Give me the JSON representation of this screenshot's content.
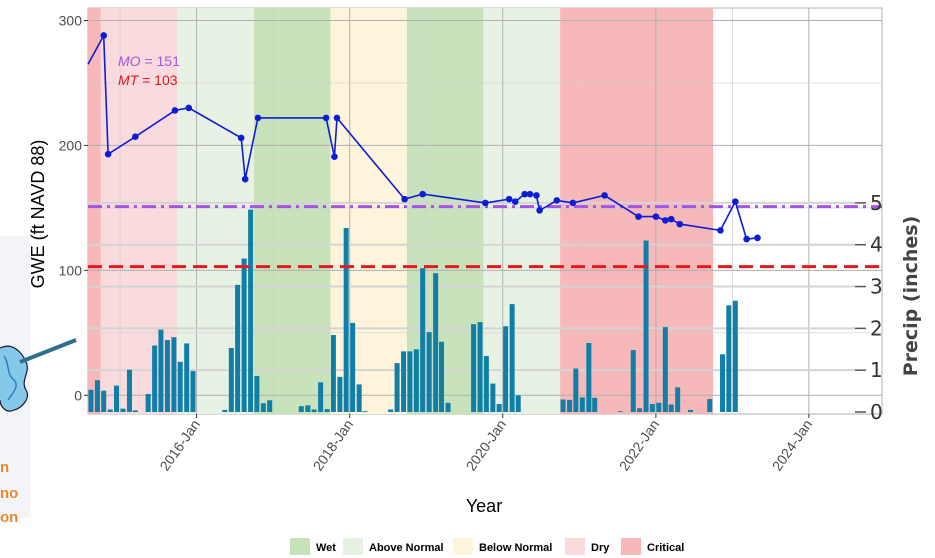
{
  "chart_data": {
    "type": "line",
    "xlabel": "Year",
    "ylabel": "GWE (ft NAVD 88)",
    "y2label": "Precip (inches)",
    "xlim": [
      "2014-08-01",
      "2024-12-15"
    ],
    "ylim": [
      -15,
      310
    ],
    "y2lim": [
      0,
      5.5
    ],
    "x_ticks": [
      "2016-01-01",
      "2018-01-01",
      "2020-01-01",
      "2022-01-01",
      "2024-01-01"
    ],
    "x_tick_labels": [
      "2016-Jan",
      "2018-Jan",
      "2020-Jan",
      "2022-Jan",
      "2024-Jan"
    ],
    "y_ticks": [
      0,
      100,
      200,
      300
    ],
    "y_tick_labels": [
      "0",
      "100",
      "200",
      "300"
    ],
    "y2_ticks": [
      0,
      1,
      2,
      3,
      4,
      5
    ],
    "y2_tick_labels": [
      "0",
      "1",
      "2",
      "3",
      "4",
      "5"
    ],
    "grid": true,
    "water_year_types": [
      {
        "start": "2014-08-01",
        "end": "2014-10-01",
        "type": "Critical"
      },
      {
        "start": "2014-10-01",
        "end": "2015-10-01",
        "type": "Dry"
      },
      {
        "start": "2015-10-01",
        "end": "2016-10-01",
        "type": "Above Normal"
      },
      {
        "start": "2016-10-01",
        "end": "2017-10-01",
        "type": "Wet"
      },
      {
        "start": "2017-10-01",
        "end": "2018-10-01",
        "type": "Below Normal"
      },
      {
        "start": "2018-10-01",
        "end": "2019-10-01",
        "type": "Wet"
      },
      {
        "start": "2019-10-01",
        "end": "2020-10-01",
        "type": "Above Normal"
      },
      {
        "start": "2020-10-01",
        "end": "2022-10-01",
        "type": "Critical"
      }
    ],
    "legend": {
      "placement": "bottom",
      "items": [
        {
          "label": "Wet",
          "color": "#c8e2bb"
        },
        {
          "label": "Above Normal",
          "color": "#e8f2e4"
        },
        {
          "label": "Below Normal",
          "color": "#fdf4db"
        },
        {
          "label": "Dry",
          "color": "#f9dadd"
        },
        {
          "label": "Critical",
          "color": "#f6b8b9"
        }
      ]
    },
    "thresholds": [
      {
        "label": "MO",
        "value": 151,
        "text_name": "MO",
        "text_value": " = 151",
        "color": "#a354e6",
        "style": "dashdot"
      },
      {
        "label": "MT",
        "value": 103,
        "text_name": "MT",
        "text_value": " = 103",
        "color": "#e31a1c",
        "style": "dashed"
      }
    ],
    "series": [
      {
        "type": "line",
        "color": "#0d1cd6",
        "points": [
          [
            "2014-08-01",
            265
          ],
          [
            "2014-10-15",
            288
          ],
          [
            "2014-11-05",
            193
          ],
          [
            "2015-03-15",
            207
          ],
          [
            "2015-09-20",
            228
          ],
          [
            "2015-11-25",
            230
          ],
          [
            "2016-08-01",
            206
          ],
          [
            "2016-08-20",
            173
          ],
          [
            "2016-10-20",
            222
          ],
          [
            "2017-09-10",
            222
          ],
          [
            "2017-10-20",
            191
          ],
          [
            "2017-11-01",
            222
          ],
          [
            "2018-09-20",
            157
          ],
          [
            "2018-12-15",
            161
          ],
          [
            "2019-10-10",
            154
          ],
          [
            "2020-02-01",
            157
          ],
          [
            "2020-03-01",
            155
          ],
          [
            "2020-04-15",
            161
          ],
          [
            "2020-05-10",
            161
          ],
          [
            "2020-06-10",
            160
          ],
          [
            "2020-06-25",
            148
          ],
          [
            "2020-09-15",
            156
          ],
          [
            "2020-12-01",
            154
          ],
          [
            "2021-05-01",
            160
          ],
          [
            "2021-10-10",
            143
          ],
          [
            "2022-01-01",
            143
          ],
          [
            "2022-02-15",
            140
          ],
          [
            "2022-03-15",
            141
          ],
          [
            "2022-04-25",
            137
          ],
          [
            "2022-11-05",
            132
          ],
          [
            "2023-01-15",
            155
          ],
          [
            "2023-03-10",
            125
          ],
          [
            "2023-05-01",
            126
          ]
        ]
      },
      {
        "type": "bar",
        "color": "#0f7fa8",
        "axis": "y2",
        "points": [
          [
            "2014-08-15",
            0.53
          ],
          [
            "2014-09-15",
            0.76
          ],
          [
            "2014-10-15",
            0.51
          ],
          [
            "2014-11-15",
            0.06
          ],
          [
            "2014-12-15",
            0.63
          ],
          [
            "2015-01-15",
            0.08
          ],
          [
            "2015-02-15",
            1.01
          ],
          [
            "2015-03-15",
            0.04
          ],
          [
            "2015-05-15",
            0.43
          ],
          [
            "2015-06-15",
            1.59
          ],
          [
            "2015-07-15",
            1.97
          ],
          [
            "2015-08-15",
            1.72
          ],
          [
            "2015-09-15",
            1.79
          ],
          [
            "2015-10-15",
            1.2
          ],
          [
            "2015-11-15",
            1.64
          ],
          [
            "2015-12-15",
            0.98
          ],
          [
            "2016-05-15",
            0.05
          ],
          [
            "2016-06-15",
            1.53
          ],
          [
            "2016-07-15",
            3.04
          ],
          [
            "2016-08-15",
            3.67
          ],
          [
            "2016-09-15",
            4.84
          ],
          [
            "2016-10-15",
            0.86
          ],
          [
            "2016-11-15",
            0.21
          ],
          [
            "2016-12-15",
            0.28
          ],
          [
            "2017-05-15",
            0.14
          ],
          [
            "2017-06-15",
            0.16
          ],
          [
            "2017-07-15",
            0.06
          ],
          [
            "2017-08-15",
            0.71
          ],
          [
            "2017-09-15",
            0.07
          ],
          [
            "2017-10-15",
            1.84
          ],
          [
            "2017-11-15",
            0.84
          ],
          [
            "2017-12-15",
            4.4
          ],
          [
            "2018-01-15",
            2.13
          ],
          [
            "2018-02-15",
            0.66
          ],
          [
            "2018-03-15",
            0.02
          ],
          [
            "2018-07-15",
            0.06
          ],
          [
            "2018-08-15",
            1.17
          ],
          [
            "2018-09-15",
            1.45
          ],
          [
            "2018-10-15",
            1.45
          ],
          [
            "2018-11-15",
            1.5
          ],
          [
            "2018-12-15",
            3.44
          ],
          [
            "2019-01-15",
            1.91
          ],
          [
            "2019-02-15",
            3.32
          ],
          [
            "2019-03-15",
            1.68
          ],
          [
            "2019-04-15",
            0.22
          ],
          [
            "2019-08-15",
            2.1
          ],
          [
            "2019-09-15",
            2.15
          ],
          [
            "2019-10-15",
            1.34
          ],
          [
            "2019-11-15",
            0.68
          ],
          [
            "2019-12-15",
            0.19
          ],
          [
            "2020-01-15",
            2.05
          ],
          [
            "2020-02-15",
            2.58
          ],
          [
            "2020-03-15",
            0.4
          ],
          [
            "2020-10-15",
            0.3
          ],
          [
            "2020-11-15",
            0.29
          ],
          [
            "2020-12-15",
            1.04
          ],
          [
            "2021-01-15",
            0.35
          ],
          [
            "2021-02-15",
            1.65
          ],
          [
            "2021-03-15",
            0.34
          ],
          [
            "2021-07-15",
            0.02
          ],
          [
            "2021-09-15",
            1.48
          ],
          [
            "2021-10-15",
            0.09
          ],
          [
            "2021-11-15",
            4.1
          ],
          [
            "2021-12-15",
            0.19
          ],
          [
            "2022-01-15",
            0.22
          ],
          [
            "2022-02-15",
            2.03
          ],
          [
            "2022-03-15",
            0.18
          ],
          [
            "2022-04-15",
            0.59
          ],
          [
            "2022-06-15",
            0.05
          ],
          [
            "2022-09-15",
            0.31
          ],
          [
            "2022-11-15",
            1.38
          ],
          [
            "2022-12-15",
            2.55
          ],
          [
            "2023-01-15",
            2.66
          ]
        ]
      }
    ]
  },
  "edge_fragments": {
    "left_texts": [
      "n",
      "no",
      "on"
    ],
    "left_text_color": "#e58a2e"
  }
}
